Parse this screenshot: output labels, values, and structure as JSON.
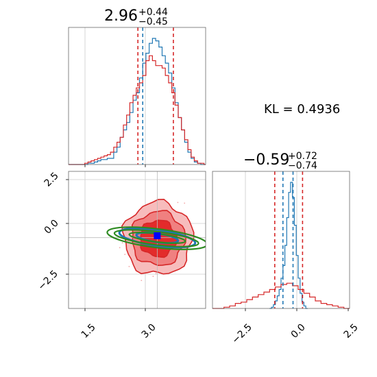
{
  "chart_data": [
    {
      "type": "histogram",
      "panel": "top-left",
      "title": {
        "value": "2.96",
        "plus": "+0.44",
        "minus": "−0.45"
      },
      "xlim": [
        0.8,
        4.2
      ],
      "x_ticks": [
        1.5,
        3.0
      ],
      "series": [
        {
          "color": "#1f77b4",
          "bin_edges": [
            0.8,
            0.88,
            0.96,
            1.04,
            1.12,
            1.2,
            1.28,
            1.36,
            1.44,
            1.52,
            1.6,
            1.68,
            1.76,
            1.84,
            1.92,
            2.0,
            2.08,
            2.16,
            2.24,
            2.32,
            2.4,
            2.48,
            2.56,
            2.64,
            2.72,
            2.8,
            2.88,
            2.96,
            3.04,
            3.12,
            3.2,
            3.28,
            3.36,
            3.44,
            3.52,
            3.6,
            3.68,
            3.76,
            3.84,
            3.92,
            4.0,
            4.08,
            4.16,
            4.2
          ],
          "counts": [
            0,
            0,
            0,
            0,
            0,
            0,
            1,
            1,
            2,
            3,
            4,
            4,
            5,
            5,
            10,
            14,
            22,
            28,
            34,
            42,
            52,
            58,
            70,
            82,
            90,
            98,
            102,
            100,
            95,
            88,
            82,
            74,
            62,
            50,
            38,
            28,
            18,
            10,
            5,
            2,
            1,
            0,
            0
          ]
        },
        {
          "color": "#d62728",
          "bin_edges": [
            0.8,
            0.88,
            0.96,
            1.04,
            1.12,
            1.2,
            1.28,
            1.36,
            1.44,
            1.52,
            1.6,
            1.68,
            1.76,
            1.84,
            1.92,
            2.0,
            2.08,
            2.16,
            2.24,
            2.32,
            2.4,
            2.48,
            2.56,
            2.64,
            2.72,
            2.8,
            2.88,
            2.96,
            3.04,
            3.12,
            3.2,
            3.28,
            3.36,
            3.44,
            3.52,
            3.6,
            3.68,
            3.76,
            3.84,
            3.92,
            4.0,
            4.08,
            4.16,
            4.2
          ],
          "counts": [
            0,
            0,
            0,
            0,
            0,
            1,
            2,
            3,
            4,
            5,
            6,
            7,
            8,
            10,
            14,
            18,
            22,
            32,
            40,
            50,
            56,
            62,
            66,
            72,
            84,
            88,
            84,
            80,
            80,
            78,
            72,
            66,
            58,
            48,
            38,
            28,
            20,
            12,
            6,
            3,
            1,
            1,
            0
          ]
        }
      ],
      "quantile_lines": [
        {
          "x": 2.52,
          "color": "#d62728"
        },
        {
          "x": 2.64,
          "color": "#1f77b4"
        },
        {
          "x": 3.4,
          "color": "#d62728"
        }
      ]
    },
    {
      "type": "contour",
      "panel": "bottom-left",
      "xlim": [
        0.8,
        4.2
      ],
      "ylim": [
        -4.0,
        2.6
      ],
      "x_ticks": [
        1.5,
        3.0
      ],
      "y_ticks": [
        2.5,
        0.0,
        -2.5
      ],
      "crosshair": {
        "x": 3.0,
        "y": -0.59
      },
      "blue_marker": {
        "x": 3.0,
        "y": -0.5
      },
      "red_filled_levels": [
        {
          "cx": 3.02,
          "cy": -0.63,
          "rx": 0.85,
          "ry": 1.75,
          "color": "#f7bcbc"
        },
        {
          "cx": 3.02,
          "cy": -0.63,
          "rx": 0.66,
          "ry": 1.3,
          "color": "#f08080"
        },
        {
          "cx": 3.02,
          "cy": -0.63,
          "rx": 0.45,
          "ry": 0.88,
          "color": "#e32b2b"
        }
      ],
      "blue_ellipses": [
        {
          "cx": 3.0,
          "cy": -0.6,
          "rx": 0.95,
          "ry": 0.38,
          "angle": -8
        }
      ],
      "green_ellipses": [
        {
          "cx": 3.0,
          "cy": -0.62,
          "rx": 1.25,
          "ry": 0.45,
          "angle": -7
        },
        {
          "cx": 2.98,
          "cy": -0.62,
          "rx": 1.05,
          "ry": 0.32,
          "angle": -7
        },
        {
          "cx": 3.0,
          "cy": -0.6,
          "rx": 0.7,
          "ry": 0.2,
          "angle": -7
        }
      ]
    },
    {
      "type": "histogram",
      "panel": "bottom-right",
      "title": {
        "value": "−0.59",
        "plus": "+0.72",
        "minus": "−0.74"
      },
      "xlim": [
        -4.6,
        2.6
      ],
      "x_ticks": [
        -2.5,
        0.0,
        2.5
      ],
      "series": [
        {
          "color": "#1f77b4",
          "bin_edges": [
            -1.6,
            -1.5,
            -1.4,
            -1.3,
            -1.2,
            -1.1,
            -1.0,
            -0.9,
            -0.8,
            -0.7,
            -0.6,
            -0.5,
            -0.4,
            -0.3,
            -0.2,
            -0.1,
            0.0,
            0.1,
            0.2,
            0.3,
            0.4
          ],
          "counts": [
            0,
            1,
            3,
            6,
            10,
            15,
            24,
            34,
            50,
            72,
            92,
            100,
            88,
            66,
            42,
            24,
            12,
            5,
            2,
            0
          ]
        },
        {
          "color": "#d62728",
          "bin_edges": [
            -4.6,
            -4.3,
            -4.0,
            -3.7,
            -3.4,
            -3.1,
            -2.8,
            -2.5,
            -2.2,
            -1.9,
            -1.6,
            -1.3,
            -1.0,
            -0.7,
            -0.4,
            -0.1,
            0.2,
            0.5,
            0.8,
            1.1,
            1.4,
            1.7,
            2.0,
            2.3,
            2.6
          ],
          "counts": [
            0,
            0,
            1,
            2,
            4,
            5,
            7,
            9,
            11,
            13,
            15,
            17,
            19,
            20,
            18,
            15,
            12,
            9,
            6,
            4,
            3,
            2,
            1,
            0
          ]
        }
      ],
      "quantile_lines": [
        {
          "x": -1.33,
          "color": "#d62728"
        },
        {
          "x": -0.9,
          "color": "#1f77b4"
        },
        {
          "x": -0.37,
          "color": "#1f77b4"
        },
        {
          "x": 0.13,
          "color": "#d62728"
        }
      ]
    }
  ],
  "annotation": {
    "kl": "KL = 0.4936"
  }
}
